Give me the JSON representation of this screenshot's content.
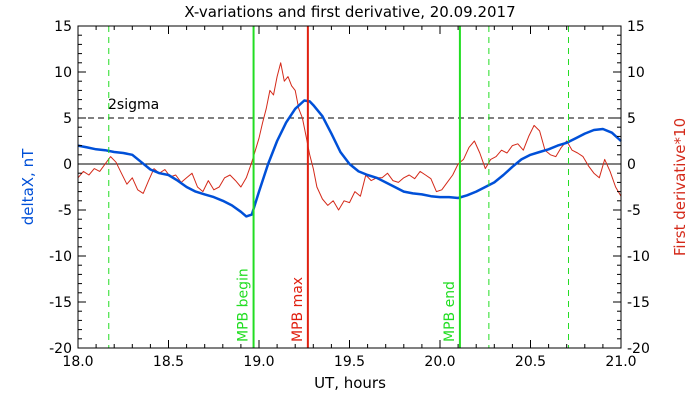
{
  "chart_data": {
    "type": "line",
    "title": "X-variations and first derivative, 20.09.2017",
    "xlabel": "UT, hours",
    "ylabel_left": "deltaX, nT",
    "ylabel_right": "First derivative*10",
    "xlim": [
      18.0,
      21.0
    ],
    "ylim": [
      -20,
      15
    ],
    "x_ticks": [
      "18.0",
      "18.5",
      "19.0",
      "19.5",
      "20.0",
      "20.5",
      "21.0"
    ],
    "y_ticks": [
      "-20",
      "-15",
      "-10",
      "-5",
      "0",
      "5",
      "10",
      "15"
    ],
    "grid": false,
    "colors": {
      "deltaX": "#0050d8",
      "derivative": "#d42a1a",
      "mpb_begin_end": "#22dd22",
      "mpb_max": "#e02010",
      "dashed_green": "#22dd22",
      "axes": "#000000"
    },
    "series": [
      {
        "role": "deltaX",
        "x": [
          18.0,
          18.05,
          18.1,
          18.15,
          18.2,
          18.25,
          18.3,
          18.35,
          18.4,
          18.45,
          18.5,
          18.55,
          18.6,
          18.65,
          18.7,
          18.75,
          18.8,
          18.85,
          18.9,
          18.93,
          18.96,
          19.0,
          19.05,
          19.1,
          19.15,
          19.2,
          19.25,
          19.28,
          19.3,
          19.35,
          19.4,
          19.45,
          19.5,
          19.55,
          19.6,
          19.65,
          19.7,
          19.75,
          19.8,
          19.85,
          19.9,
          19.95,
          20.0,
          20.05,
          20.1,
          20.15,
          20.2,
          20.25,
          20.3,
          20.35,
          20.4,
          20.45,
          20.5,
          20.55,
          20.6,
          20.65,
          20.7,
          20.75,
          20.8,
          20.85,
          20.9,
          20.95,
          21.0
        ],
        "y": [
          2.0,
          1.8,
          1.6,
          1.5,
          1.3,
          1.2,
          1.0,
          0.2,
          -0.6,
          -1.0,
          -1.2,
          -1.8,
          -2.5,
          -3.0,
          -3.3,
          -3.6,
          -4.0,
          -4.5,
          -5.2,
          -5.7,
          -5.5,
          -3.0,
          0.0,
          2.5,
          4.5,
          6.0,
          6.9,
          6.8,
          6.4,
          5.2,
          3.3,
          1.3,
          0.0,
          -0.8,
          -1.2,
          -1.5,
          -2.0,
          -2.5,
          -3.0,
          -3.2,
          -3.3,
          -3.5,
          -3.6,
          -3.6,
          -3.7,
          -3.4,
          -3.0,
          -2.5,
          -2.0,
          -1.2,
          -0.3,
          0.5,
          1.0,
          1.3,
          1.6,
          2.0,
          2.3,
          2.8,
          3.3,
          3.7,
          3.8,
          3.4,
          2.5
        ]
      },
      {
        "role": "derivative",
        "x": [
          18.0,
          18.03,
          18.06,
          18.09,
          18.12,
          18.15,
          18.18,
          18.21,
          18.24,
          18.27,
          18.3,
          18.33,
          18.36,
          18.39,
          18.42,
          18.45,
          18.48,
          18.51,
          18.54,
          18.57,
          18.6,
          18.63,
          18.66,
          18.69,
          18.72,
          18.75,
          18.78,
          18.81,
          18.84,
          18.87,
          18.9,
          18.93,
          18.96,
          18.98,
          19.0,
          19.02,
          19.04,
          19.06,
          19.08,
          19.1,
          19.12,
          19.14,
          19.16,
          19.18,
          19.2,
          19.22,
          19.24,
          19.26,
          19.28,
          19.3,
          19.32,
          19.35,
          19.38,
          19.41,
          19.44,
          19.47,
          19.5,
          19.53,
          19.56,
          19.59,
          19.62,
          19.65,
          19.68,
          19.71,
          19.74,
          19.77,
          19.8,
          19.83,
          19.86,
          19.89,
          19.92,
          19.95,
          19.98,
          20.01,
          20.04,
          20.07,
          20.1,
          20.13,
          20.16,
          20.19,
          20.22,
          20.25,
          20.28,
          20.31,
          20.34,
          20.37,
          20.4,
          20.43,
          20.46,
          20.49,
          20.52,
          20.55,
          20.58,
          20.61,
          20.64,
          20.67,
          20.7,
          20.73,
          20.76,
          20.79,
          20.82,
          20.85,
          20.88,
          20.91,
          20.94,
          20.97,
          21.0
        ],
        "y": [
          -1.5,
          -0.8,
          -1.2,
          -0.5,
          -0.8,
          0.0,
          0.8,
          0.2,
          -1.0,
          -2.2,
          -1.5,
          -2.8,
          -3.2,
          -1.8,
          -0.5,
          -1.0,
          -0.6,
          -1.4,
          -1.2,
          -2.0,
          -1.5,
          -1.0,
          -2.5,
          -3.0,
          -1.8,
          -2.8,
          -2.5,
          -1.5,
          -1.2,
          -1.8,
          -2.5,
          -1.5,
          0.2,
          1.5,
          2.8,
          4.5,
          6.0,
          8.0,
          7.5,
          9.5,
          11.0,
          9.0,
          9.5,
          8.5,
          8.0,
          6.0,
          5.0,
          3.0,
          1.0,
          -0.5,
          -2.5,
          -3.8,
          -4.5,
          -4.0,
          -5.0,
          -4.0,
          -4.2,
          -3.0,
          -3.5,
          -1.2,
          -1.8,
          -1.5,
          -1.5,
          -1.0,
          -1.8,
          -2.0,
          -1.5,
          -1.2,
          -1.6,
          -0.8,
          -1.2,
          -1.6,
          -3.0,
          -2.8,
          -2.0,
          -1.2,
          0.0,
          0.5,
          1.8,
          2.5,
          1.2,
          -0.5,
          0.5,
          0.8,
          1.5,
          1.2,
          2.0,
          2.2,
          1.5,
          3.0,
          4.2,
          3.6,
          1.5,
          1.0,
          0.8,
          1.8,
          2.5,
          1.5,
          1.2,
          0.8,
          -0.2,
          -1.0,
          -1.5,
          0.5,
          -0.8,
          -2.5,
          -3.5
        ]
      }
    ],
    "hlines": [
      {
        "y": 5,
        "style": "dashed",
        "label": "2sigma"
      },
      {
        "y": 0,
        "style": "solid",
        "label": ""
      }
    ],
    "vlines": [
      {
        "x": 18.17,
        "style": "dashed",
        "color_key": "dashed_green",
        "label": ""
      },
      {
        "x": 18.97,
        "style": "solid",
        "color_key": "mpb_begin_end",
        "label": "MPB begin"
      },
      {
        "x": 19.27,
        "style": "solid",
        "color_key": "mpb_max",
        "label": "MPB max"
      },
      {
        "x": 20.11,
        "style": "solid",
        "color_key": "mpb_begin_end",
        "label": "MPB end"
      },
      {
        "x": 20.27,
        "style": "dashed",
        "color_key": "dashed_green",
        "label": ""
      },
      {
        "x": 20.71,
        "style": "dashed",
        "color_key": "dashed_green",
        "label": ""
      }
    ]
  }
}
